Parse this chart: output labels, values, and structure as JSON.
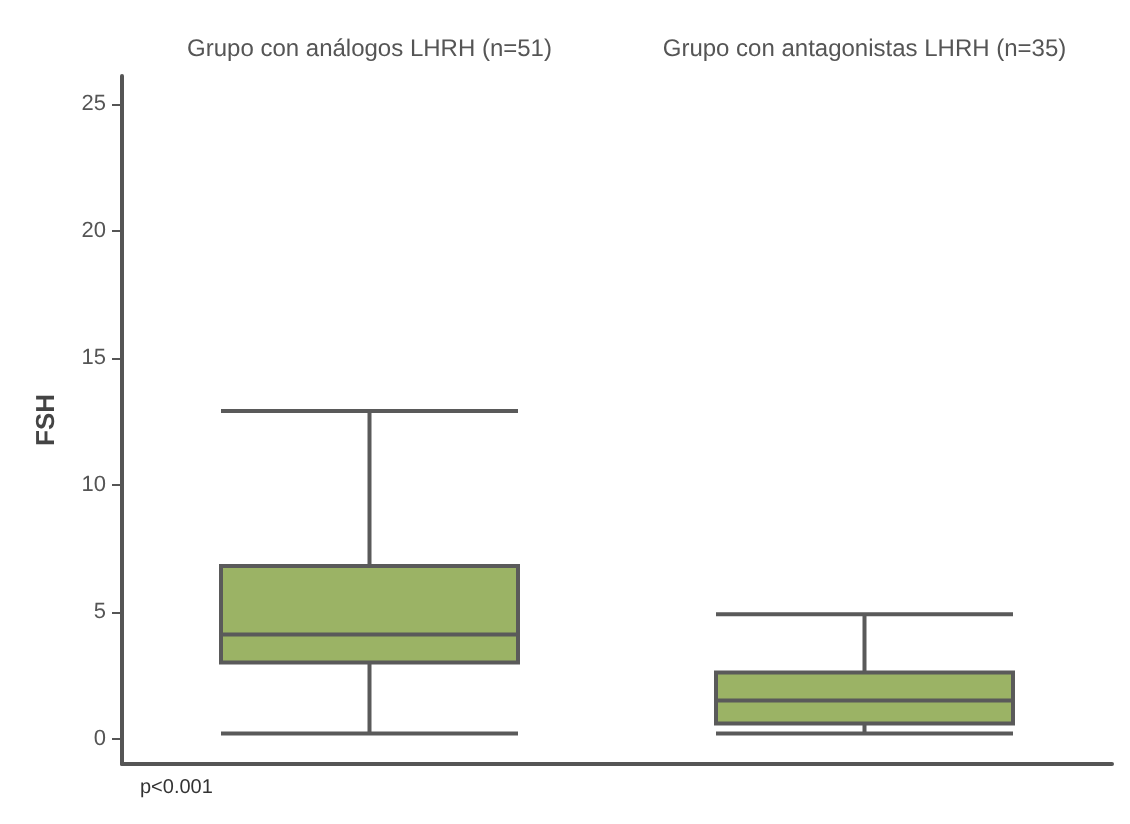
{
  "chart_data": {
    "type": "box",
    "ylabel": "FSH",
    "categories": [
      "Grupo con análogos LHRH (n=51)",
      "Grupo con antagonistas LHRH (n=35)"
    ],
    "series": [
      {
        "color": "#9bb365",
        "boxes": [
          {
            "low": 0.2,
            "q1": 3.0,
            "median": 4.1,
            "q3": 6.8,
            "high": 12.9
          },
          {
            "low": 0.2,
            "q1": 0.6,
            "median": 1.5,
            "q3": 2.6,
            "high": 4.9
          }
        ]
      }
    ],
    "ylim": [
      -1,
      26.1
    ],
    "yticks": [
      0,
      5,
      10,
      15,
      20,
      25
    ],
    "annotations": [
      "p<0.001"
    ]
  }
}
